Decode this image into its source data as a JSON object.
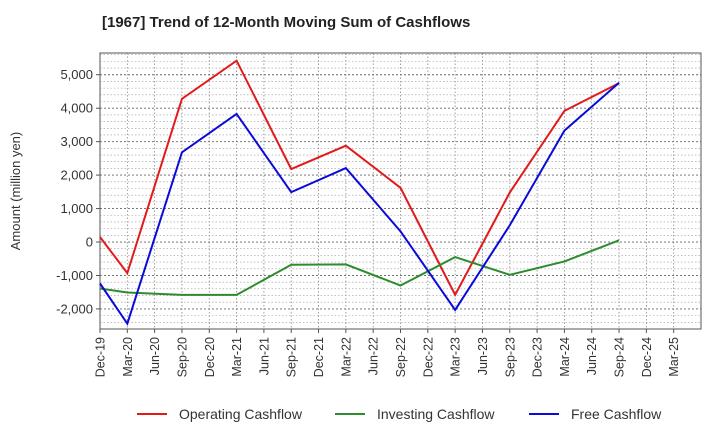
{
  "chart_data": {
    "type": "line",
    "title": "[1967]  Trend of 12-Month Moving Sum of Cashflows",
    "xlabel": "",
    "ylabel": "Amount (million yen)",
    "ylim": [
      -2600,
      5650
    ],
    "yticks": [
      -2000,
      -1000,
      0,
      1000,
      2000,
      3000,
      4000,
      5000
    ],
    "ytick_labels": [
      "-2,000",
      "-1,000",
      "0",
      "1,000",
      "2,000",
      "3,000",
      "4,000",
      "5,000"
    ],
    "categories": [
      "Dec-19",
      "Mar-20",
      "Jun-20",
      "Sep-20",
      "Dec-20",
      "Mar-21",
      "Jun-21",
      "Sep-21",
      "Dec-21",
      "Mar-22",
      "Jun-22",
      "Sep-22",
      "Dec-22",
      "Mar-23",
      "Jun-23",
      "Sep-23",
      "Dec-23",
      "Mar-24",
      "Jun-24",
      "Sep-24",
      "Dec-24",
      "Mar-25"
    ],
    "grid": true,
    "legend_position": "bottom",
    "series": [
      {
        "name": "Operating Cashflow",
        "color": "#e31a1c",
        "values": [
          150,
          -930,
          null,
          4280,
          null,
          5420,
          null,
          2180,
          null,
          2880,
          null,
          1620,
          null,
          -1580,
          null,
          1480,
          null,
          3920,
          null,
          4750,
          null,
          null
        ]
      },
      {
        "name": "Investing Cashflow",
        "color": "#2e8b2e",
        "values": [
          -1390,
          -1510,
          null,
          -1580,
          null,
          -1580,
          null,
          -680,
          null,
          -670,
          null,
          -1300,
          null,
          -450,
          null,
          -980,
          null,
          -580,
          null,
          50,
          null,
          null
        ]
      },
      {
        "name": "Free Cashflow",
        "color": "#0b0bd8",
        "values": [
          -1240,
          -2440,
          null,
          2680,
          null,
          3830,
          null,
          1490,
          null,
          2210,
          null,
          320,
          null,
          -2030,
          null,
          500,
          null,
          3330,
          null,
          4760,
          null,
          null
        ]
      }
    ]
  }
}
